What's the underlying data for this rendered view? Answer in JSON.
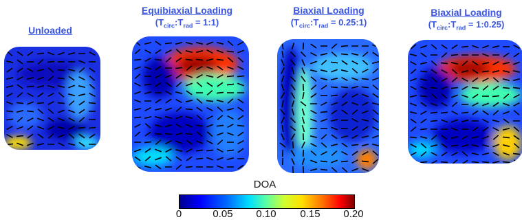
{
  "panels": [
    {
      "title": "Unloaded",
      "condition": null
    },
    {
      "title": "Equibiaxial Loading",
      "condition": {
        "open": "(T",
        "sub1": "circ",
        "mid": ":T",
        "sub2": "rad",
        "ratio": " = 1:1)"
      }
    },
    {
      "title": "Biaxial Loading",
      "condition": {
        "open": "(T",
        "sub1": "circ",
        "mid": ":T",
        "sub2": "rad",
        "ratio": " = 0.25:1)"
      }
    },
    {
      "title": "Biaxial Loading",
      "condition": {
        "open": "(T",
        "sub1": "circ",
        "mid": ":T",
        "sub2": "rad",
        "ratio": " = 1:0.25)"
      }
    }
  ],
  "colorbar": {
    "label": "DOA",
    "ticks": [
      "0",
      "0.05",
      "0.10",
      "0.15",
      "0.20"
    ],
    "colors": [
      "#00008f",
      "#0000ff",
      "#0070ff",
      "#00e0ff",
      "#60ff9f",
      "#d0ff30",
      "#ffe000",
      "#ff7000",
      "#ff0000",
      "#800000"
    ]
  },
  "icons": [
    "fiber-orientation-glyph"
  ]
}
